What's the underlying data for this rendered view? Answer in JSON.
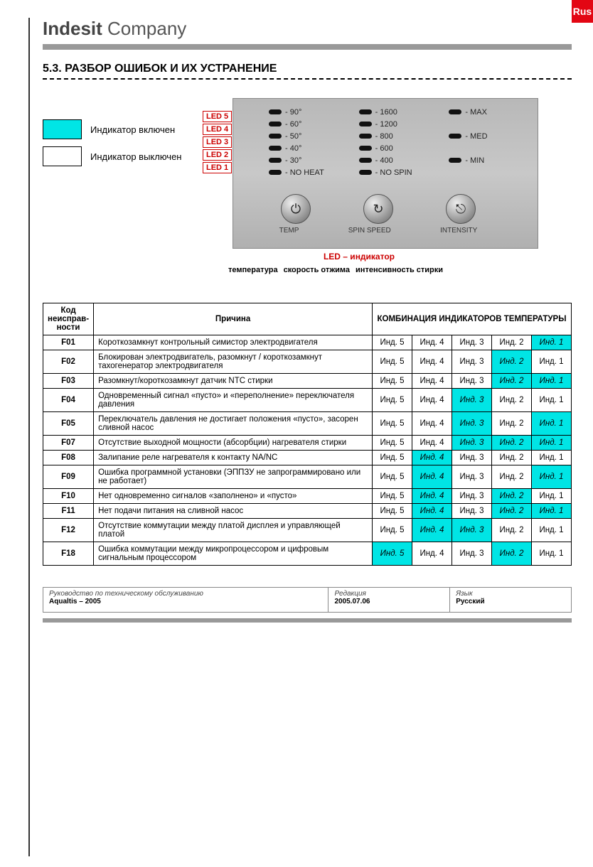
{
  "tab": "Rus",
  "brand_bold": "Indesit",
  "brand_light": "Company",
  "section": "5.3. РАЗБОР ОШИБОК И ИХ УСТРАНЕНИЕ",
  "legend": {
    "on": "Индикатор включен",
    "off": "Индикатор выключен"
  },
  "leds": [
    "LED 5",
    "LED 4",
    "LED 3",
    "LED 2",
    "LED 1"
  ],
  "led_caption": "LED – индикатор",
  "panel": {
    "temp": [
      "- 90°",
      "- 60°",
      "- 50°",
      "- 40°",
      "- 30°",
      "- NO HEAT"
    ],
    "spin": [
      "- 1600",
      "- 1200",
      "- 800",
      "- 600",
      "- 400",
      "- NO SPIN"
    ],
    "intens": [
      "- MAX",
      "",
      "- MED",
      "",
      "- MIN",
      ""
    ],
    "labels": [
      "TEMP",
      "SPIN SPEED",
      "INTENSITY"
    ],
    "knob_glyphs": [
      "⏻",
      "↻",
      "⎋"
    ]
  },
  "captions": [
    "температура",
    "скорость отжима",
    "интенсивность стирки"
  ],
  "table": {
    "head": {
      "code": "Код неисправ-ности",
      "cause": "Причина",
      "combo": "КОМБИНАЦИЯ ИНДИКАТОРОВ ТЕМПЕРАТУРЫ"
    },
    "ind_labels": [
      "Инд. 5",
      "Инд. 4",
      "Инд. 3",
      "Инд. 2",
      "Инд. 1"
    ],
    "rows": [
      {
        "code": "F01",
        "cause": "Короткозамкнут контрольный симистор электродвигателя",
        "on": [
          0,
          0,
          0,
          0,
          1
        ]
      },
      {
        "code": "F02",
        "cause": "Блокирован электродвигатель, разомкнут / короткозамкнут тахогенератор электродвигателя",
        "on": [
          0,
          0,
          0,
          1,
          0
        ]
      },
      {
        "code": "F03",
        "cause": "Разомкнут/короткозамкнут датчик NTC стирки",
        "on": [
          0,
          0,
          0,
          1,
          1
        ]
      },
      {
        "code": "F04",
        "cause": "Одновременный сигнал «пусто» и «переполнение» переключателя давления",
        "on": [
          0,
          0,
          1,
          0,
          0
        ]
      },
      {
        "code": "F05",
        "cause": "Переключатель давления не достигает положения «пусто», засорен сливной насос",
        "on": [
          0,
          0,
          1,
          0,
          1
        ]
      },
      {
        "code": "F07",
        "cause": "Отсутствие выходной мощности (абсорбции) нагревателя стирки",
        "on": [
          0,
          0,
          1,
          1,
          1
        ]
      },
      {
        "code": "F08",
        "cause": "Залипание реле нагревателя к контакту NA/NC",
        "on": [
          0,
          1,
          0,
          0,
          0
        ]
      },
      {
        "code": "F09",
        "cause": "Ошибка программной установки (ЭППЗУ не запрограммировано или не работает)",
        "on": [
          0,
          1,
          0,
          0,
          1
        ]
      },
      {
        "code": "F10",
        "cause": "Нет одновременно сигналов «заполнено» и «пусто»",
        "on": [
          0,
          1,
          0,
          1,
          0
        ]
      },
      {
        "code": "F11",
        "cause": "Нет подачи питания на сливной насос",
        "on": [
          0,
          1,
          0,
          1,
          1
        ]
      },
      {
        "code": "F12",
        "cause": "Отсутствие коммутации между платой дисплея и управляющей платой",
        "on": [
          0,
          1,
          1,
          0,
          0
        ]
      },
      {
        "code": "F18",
        "cause": "Ошибка коммутации между микропроцессором и цифровым сигнальным процессором",
        "on": [
          1,
          0,
          0,
          1,
          0
        ]
      }
    ]
  },
  "footer": {
    "l1": "Руководство по техническому обслуживанию",
    "l1b": "Aqualtis – 2005",
    "l2": "Редакция",
    "l2b": "2005.07.06",
    "l3": "Язык",
    "l3b": "Русский"
  },
  "colors": {
    "on": "#00e5e5",
    "red": "#c00000",
    "grey": "#999999"
  }
}
